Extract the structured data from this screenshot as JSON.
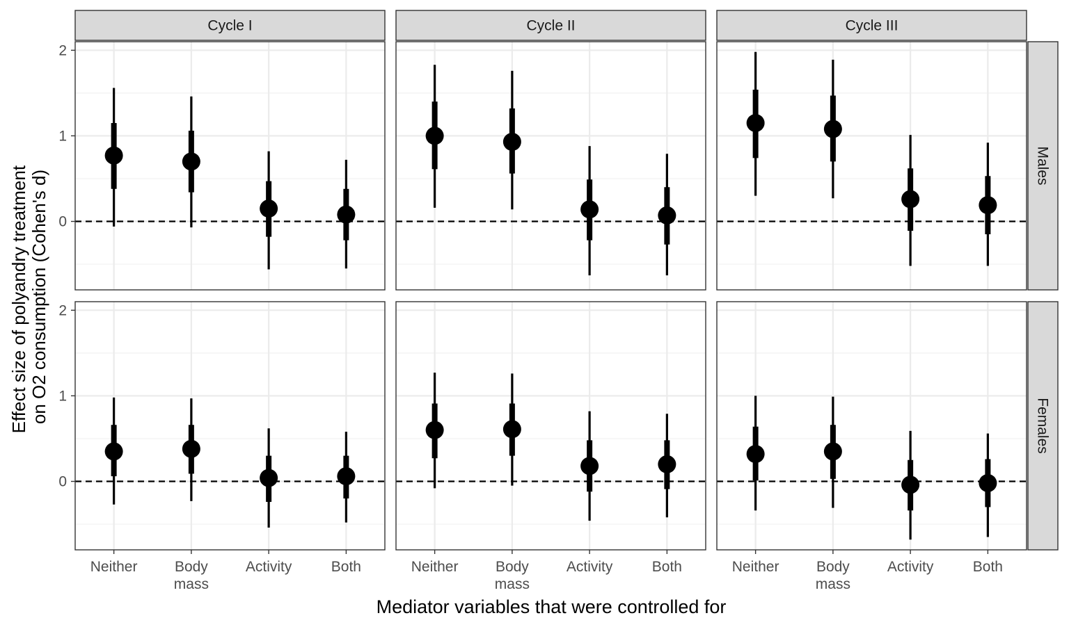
{
  "chart_data": {
    "type": "pointrange",
    "facet_columns": [
      "Cycle I",
      "Cycle II",
      "Cycle III"
    ],
    "facet_rows": [
      "Males",
      "Females"
    ],
    "categories": [
      [
        "Neither"
      ],
      [
        "Body",
        "mass"
      ],
      [
        "Activity"
      ],
      [
        "Both"
      ]
    ],
    "xlabel": "Mediator variables that were controlled for",
    "ylabel": [
      "Effect size of polyandry treatment",
      "on O2 consumption (Cohen's d)"
    ],
    "ylim": [
      -0.8,
      2.1
    ],
    "yticks": [
      0,
      1,
      2
    ],
    "reference_line": 0,
    "grid": true,
    "intervals": [
      "outer (thin)",
      "inner (thick)"
    ],
    "panels": [
      {
        "row": "Males",
        "column": "Cycle I",
        "points": [
          {
            "category": "Neither",
            "estimate": 0.77,
            "inner": [
              0.38,
              1.15
            ],
            "outer": [
              -0.06,
              1.56
            ]
          },
          {
            "category": "Body mass",
            "estimate": 0.7,
            "inner": [
              0.34,
              1.06
            ],
            "outer": [
              -0.07,
              1.46
            ]
          },
          {
            "category": "Activity",
            "estimate": 0.15,
            "inner": [
              -0.18,
              0.47
            ],
            "outer": [
              -0.56,
              0.82
            ]
          },
          {
            "category": "Both",
            "estimate": 0.08,
            "inner": [
              -0.22,
              0.38
            ],
            "outer": [
              -0.55,
              0.72
            ]
          }
        ]
      },
      {
        "row": "Males",
        "column": "Cycle II",
        "points": [
          {
            "category": "Neither",
            "estimate": 1.0,
            "inner": [
              0.61,
              1.4
            ],
            "outer": [
              0.16,
              1.83
            ]
          },
          {
            "category": "Body mass",
            "estimate": 0.93,
            "inner": [
              0.56,
              1.32
            ],
            "outer": [
              0.14,
              1.76
            ]
          },
          {
            "category": "Activity",
            "estimate": 0.14,
            "inner": [
              -0.22,
              0.49
            ],
            "outer": [
              -0.63,
              0.88
            ]
          },
          {
            "category": "Both",
            "estimate": 0.07,
            "inner": [
              -0.27,
              0.4
            ],
            "outer": [
              -0.63,
              0.79
            ]
          }
        ]
      },
      {
        "row": "Males",
        "column": "Cycle III",
        "points": [
          {
            "category": "Neither",
            "estimate": 1.15,
            "inner": [
              0.74,
              1.54
            ],
            "outer": [
              0.3,
              1.98
            ]
          },
          {
            "category": "Body mass",
            "estimate": 1.08,
            "inner": [
              0.7,
              1.47
            ],
            "outer": [
              0.27,
              1.89
            ]
          },
          {
            "category": "Activity",
            "estimate": 0.26,
            "inner": [
              -0.11,
              0.62
            ],
            "outer": [
              -0.52,
              1.01
            ]
          },
          {
            "category": "Both",
            "estimate": 0.19,
            "inner": [
              -0.15,
              0.53
            ],
            "outer": [
              -0.52,
              0.92
            ]
          }
        ]
      },
      {
        "row": "Females",
        "column": "Cycle I",
        "points": [
          {
            "category": "Neither",
            "estimate": 0.35,
            "inner": [
              0.06,
              0.66
            ],
            "outer": [
              -0.27,
              0.98
            ]
          },
          {
            "category": "Body mass",
            "estimate": 0.38,
            "inner": [
              0.09,
              0.66
            ],
            "outer": [
              -0.23,
              0.97
            ]
          },
          {
            "category": "Activity",
            "estimate": 0.04,
            "inner": [
              -0.24,
              0.3
            ],
            "outer": [
              -0.54,
              0.62
            ]
          },
          {
            "category": "Both",
            "estimate": 0.06,
            "inner": [
              -0.2,
              0.3
            ],
            "outer": [
              -0.48,
              0.58
            ]
          }
        ]
      },
      {
        "row": "Females",
        "column": "Cycle II",
        "points": [
          {
            "category": "Neither",
            "estimate": 0.6,
            "inner": [
              0.27,
              0.91
            ],
            "outer": [
              -0.08,
              1.27
            ]
          },
          {
            "category": "Body mass",
            "estimate": 0.61,
            "inner": [
              0.3,
              0.91
            ],
            "outer": [
              -0.05,
              1.26
            ]
          },
          {
            "category": "Activity",
            "estimate": 0.18,
            "inner": [
              -0.12,
              0.48
            ],
            "outer": [
              -0.46,
              0.82
            ]
          },
          {
            "category": "Both",
            "estimate": 0.2,
            "inner": [
              -0.09,
              0.48
            ],
            "outer": [
              -0.42,
              0.79
            ]
          }
        ]
      },
      {
        "row": "Females",
        "column": "Cycle III",
        "points": [
          {
            "category": "Neither",
            "estimate": 0.32,
            "inner": [
              0.01,
              0.64
            ],
            "outer": [
              -0.34,
              1.0
            ]
          },
          {
            "category": "Body mass",
            "estimate": 0.35,
            "inner": [
              0.03,
              0.66
            ],
            "outer": [
              -0.31,
              0.99
            ]
          },
          {
            "category": "Activity",
            "estimate": -0.04,
            "inner": [
              -0.34,
              0.25
            ],
            "outer": [
              -0.68,
              0.59
            ]
          },
          {
            "category": "Both",
            "estimate": -0.02,
            "inner": [
              -0.3,
              0.26
            ],
            "outer": [
              -0.65,
              0.56
            ]
          }
        ]
      }
    ]
  }
}
